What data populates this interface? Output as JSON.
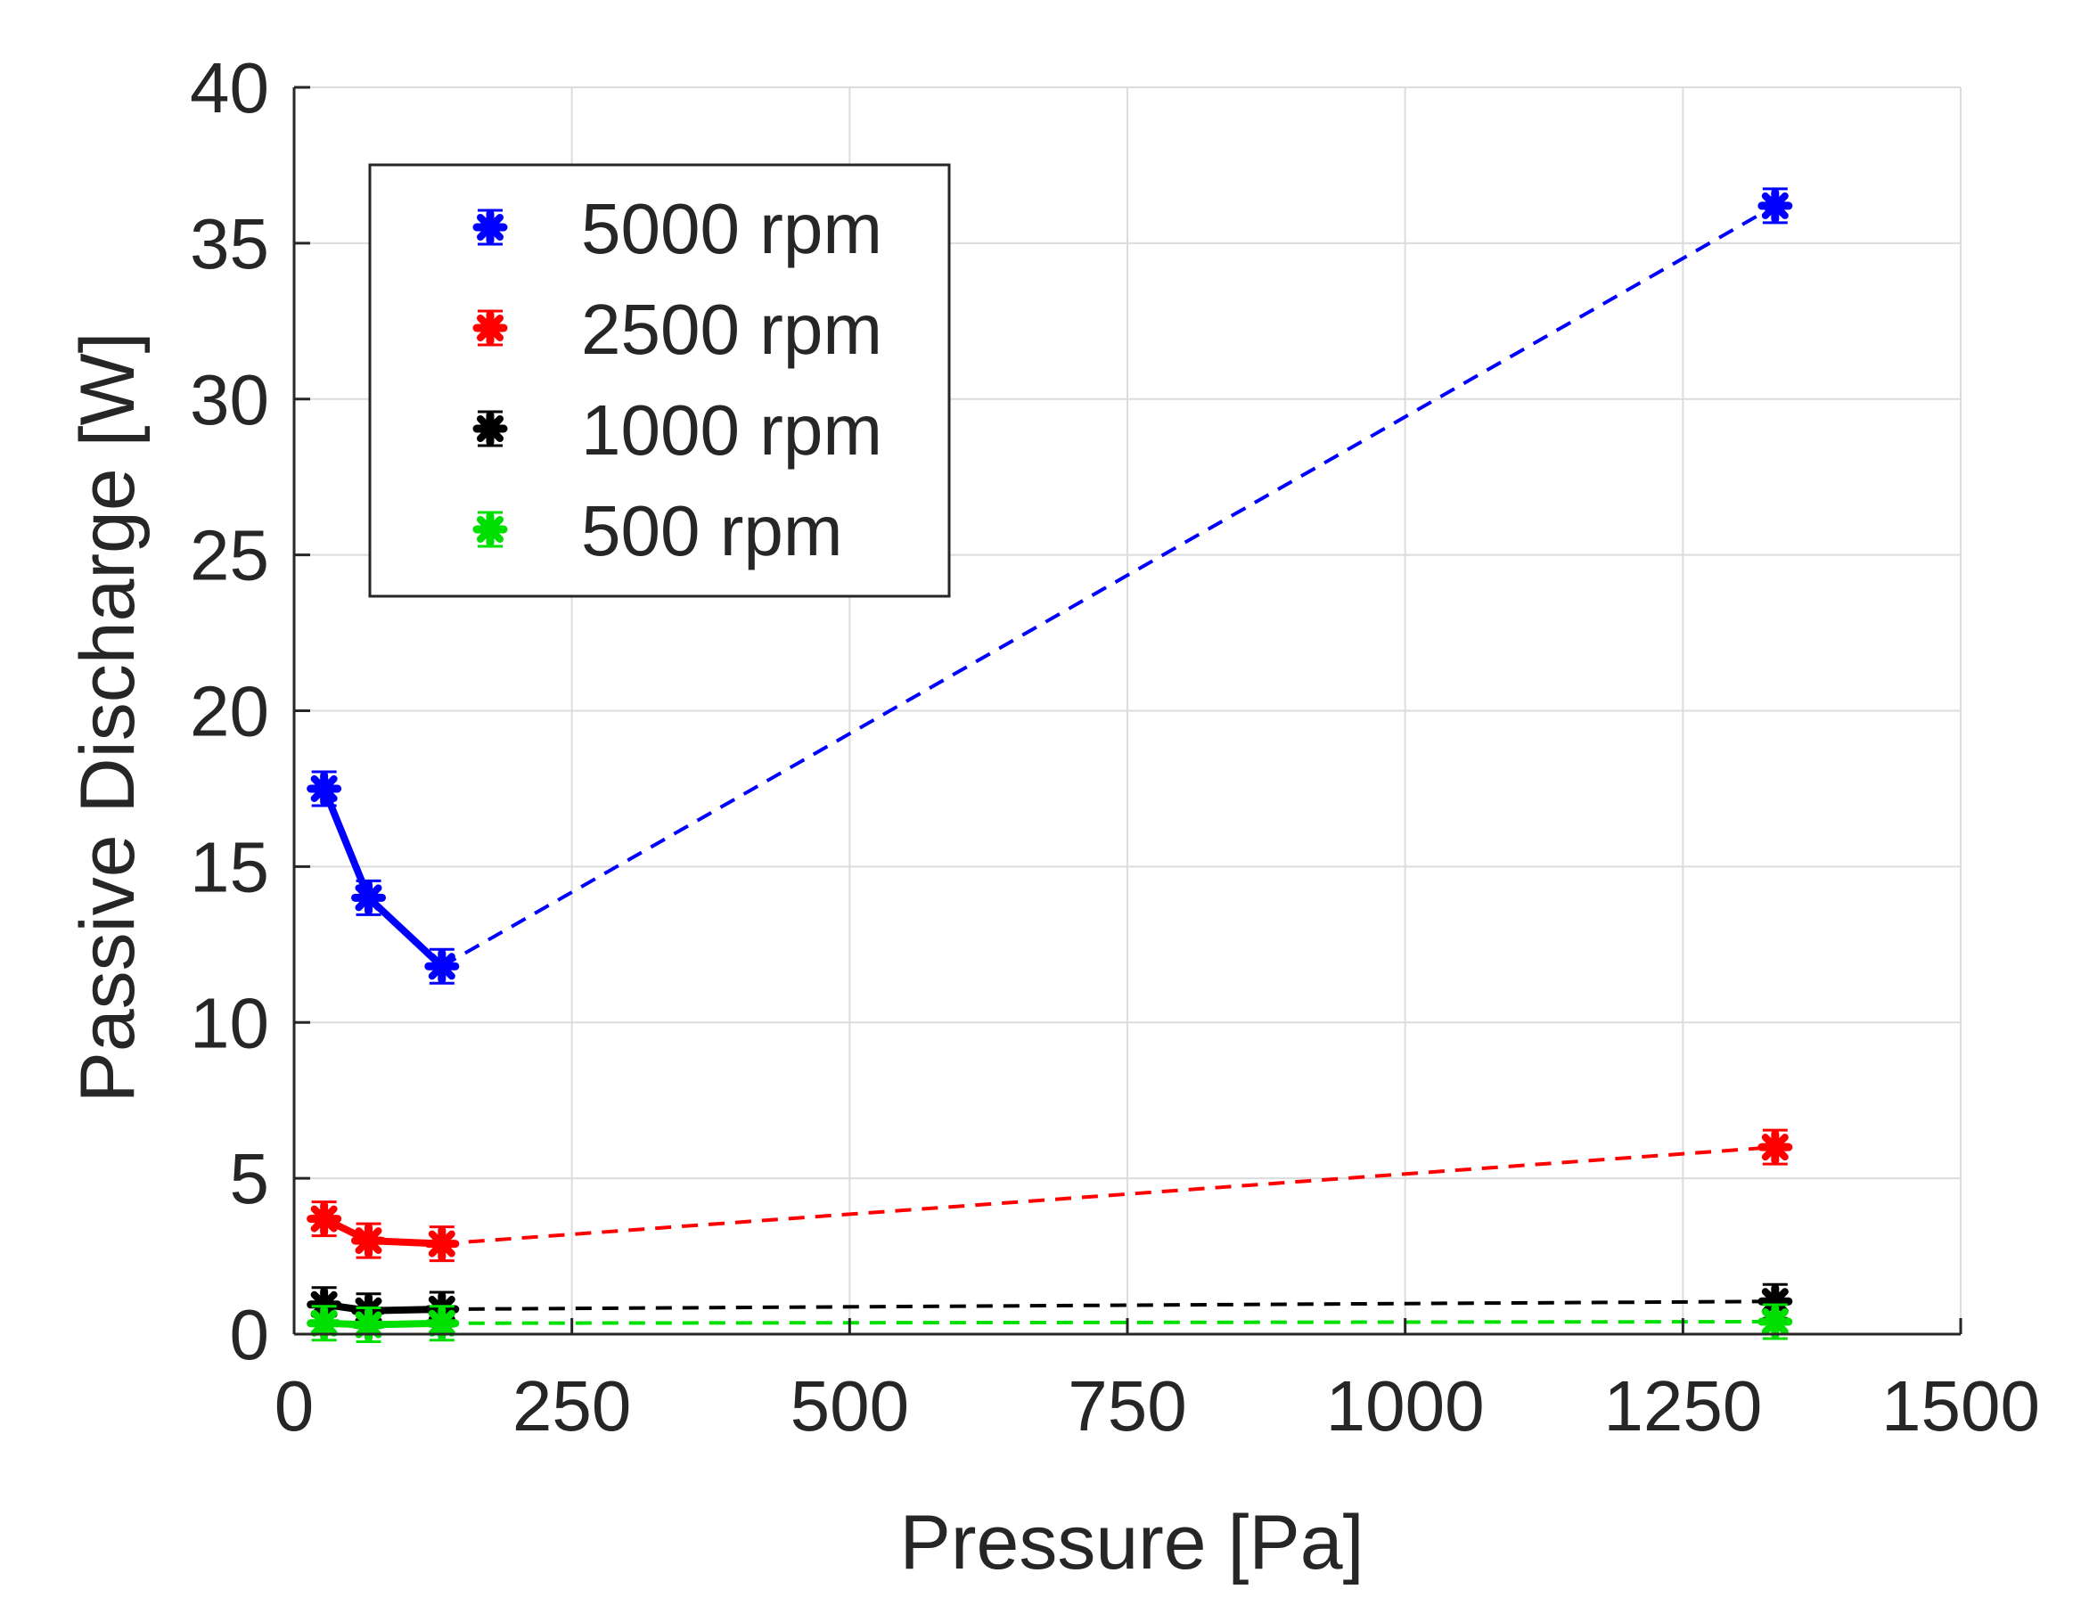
{
  "chart_data": {
    "type": "scatter",
    "title": "",
    "xlabel": "Pressure [Pa]",
    "ylabel": "Passive Discharge [W]",
    "xlim": [
      0,
      1500
    ],
    "ylim": [
      0,
      40
    ],
    "xticks": [
      0,
      250,
      500,
      750,
      1000,
      1250,
      1500
    ],
    "yticks": [
      0,
      5,
      10,
      15,
      20,
      25,
      30,
      35,
      40
    ],
    "grid": true,
    "legend_position": "top-left",
    "series": [
      {
        "name": "5000 rpm",
        "color": "#0000ff",
        "x": [
          27,
          67,
          133,
          1333
        ],
        "y": [
          17.5,
          14.0,
          11.8,
          36.2
        ],
        "solid_segment_points": 3,
        "dashed_segment_from": 2
      },
      {
        "name": "2500 rpm",
        "color": "#ff0000",
        "x": [
          27,
          67,
          133,
          1333
        ],
        "y": [
          3.7,
          3.0,
          2.9,
          6.0
        ],
        "solid_segment_points": 3,
        "dashed_segment_from": 2
      },
      {
        "name": "1000 rpm",
        "color": "#000000",
        "x": [
          27,
          67,
          133,
          1333
        ],
        "y": [
          0.95,
          0.75,
          0.8,
          1.05
        ],
        "solid_segment_points": 3,
        "dashed_segment_from": 2
      },
      {
        "name": "500 rpm",
        "color": "#00e000",
        "x": [
          27,
          67,
          133,
          1333
        ],
        "y": [
          0.35,
          0.3,
          0.35,
          0.4
        ],
        "solid_segment_points": 3,
        "dashed_segment_from": 2
      }
    ]
  }
}
